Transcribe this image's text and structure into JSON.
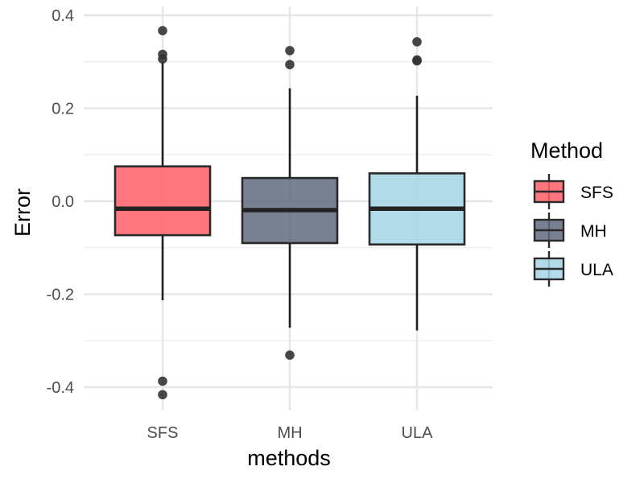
{
  "chart_data": {
    "type": "boxplot",
    "title": "",
    "xlabel": "methods",
    "ylabel": "Error",
    "ylim": [
      -0.46,
      0.41
    ],
    "yticks": [
      -0.4,
      -0.2,
      0.0,
      0.2,
      0.4
    ],
    "ytick_labels": [
      "-0.4",
      "-0.2",
      "0.0",
      "0.2",
      "0.4"
    ],
    "grid": true,
    "legend": {
      "title": "Method",
      "position": "right"
    },
    "categories": [
      "SFS",
      "MH",
      "ULA"
    ],
    "series": [
      {
        "name": "SFS",
        "color": "#ff5e67",
        "whisker_low": -0.213,
        "q1": -0.073,
        "median": -0.016,
        "q3": 0.075,
        "whisker_high": 0.3,
        "outliers": [
          0.367,
          0.316,
          0.306,
          -0.387,
          -0.416
        ]
      },
      {
        "name": "MH",
        "color": "#5f6b7f",
        "whisker_low": -0.272,
        "q1": -0.09,
        "median": -0.019,
        "q3": 0.05,
        "whisker_high": 0.243,
        "outliers": [
          0.324,
          0.294,
          -0.331
        ]
      },
      {
        "name": "ULA",
        "color": "#a4d5e6",
        "whisker_low": -0.278,
        "q1": -0.093,
        "median": -0.016,
        "q3": 0.06,
        "whisker_high": 0.227,
        "outliers": [
          0.343,
          0.304,
          0.302
        ]
      }
    ]
  }
}
